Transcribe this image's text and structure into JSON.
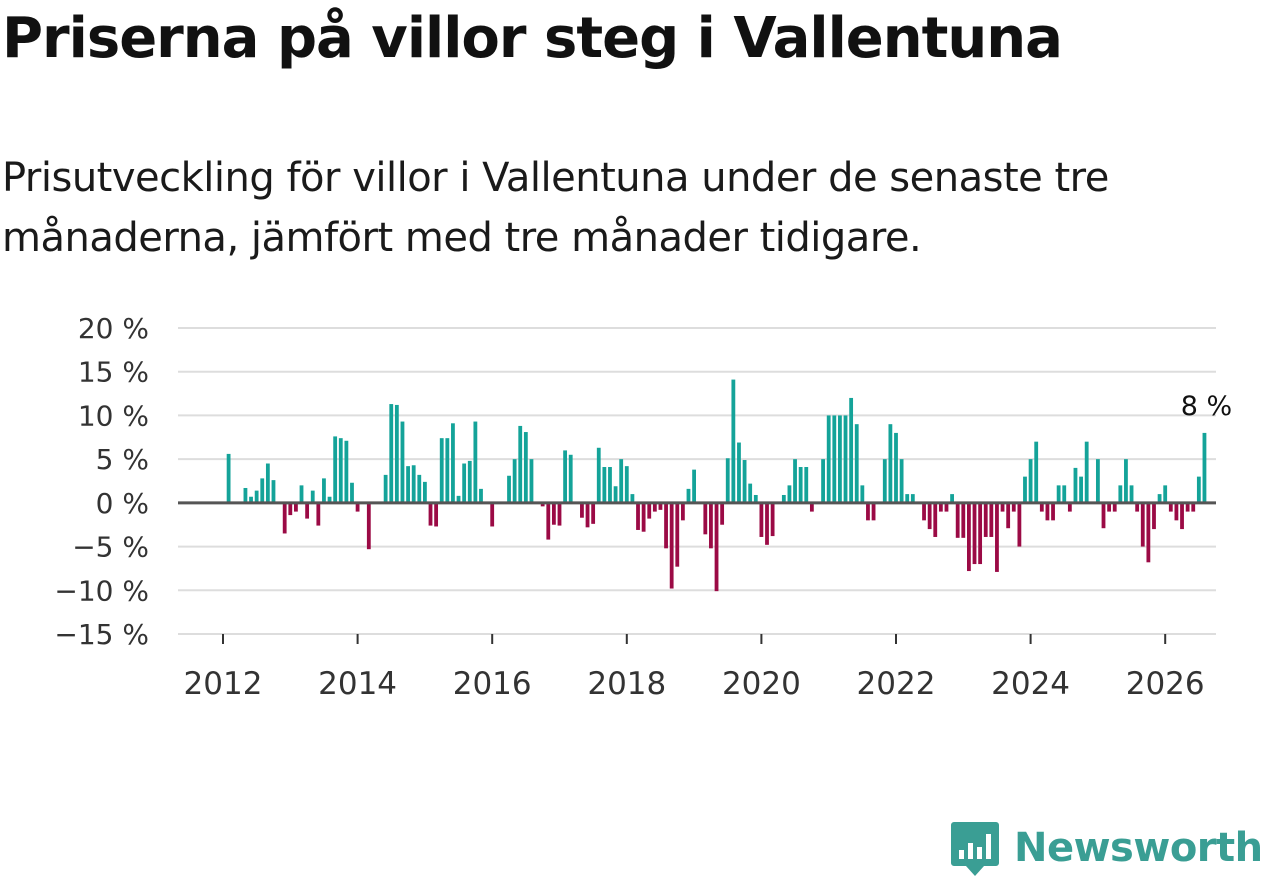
{
  "title": "Priserna på villor steg i Vallentuna",
  "subtitle": "Prisutveckling för villor i Vallentuna under de senaste tre månaderna, jämfört med tre månader tidigare.",
  "brand": {
    "name": "Newsworthy",
    "color": "#3a9e94"
  },
  "colors": {
    "positive": "#14a399",
    "negative": "#9b0a45",
    "grid": "#dddddd",
    "zero": "#555555"
  },
  "chart_data": {
    "type": "bar",
    "title": "Priserna på villor steg i Vallentuna",
    "xlabel": "",
    "ylabel": "",
    "ylim": [
      -15,
      20
    ],
    "yticks": [
      20,
      15,
      10,
      5,
      0,
      -5,
      -10,
      -15
    ],
    "ytick_labels": [
      "20 %",
      "15 %",
      "10 %",
      "5 %",
      "0 %",
      "−5 %",
      "−10 %",
      "−15 %"
    ],
    "xticks": [
      2012,
      2014,
      2016,
      2018,
      2020,
      2022,
      2024,
      2026
    ],
    "xtick_labels": [
      "2012",
      "2014",
      "2016",
      "2018",
      "2020",
      "2022",
      "2024",
      "2026"
    ],
    "x_start": "2012-01",
    "last_value_label": "8 %",
    "grid": true,
    "values": [
      0,
      5.6,
      0,
      0,
      1.7,
      0.7,
      1.4,
      2.8,
      4.5,
      2.6,
      0,
      -3.5,
      -1.4,
      -1.0,
      2.0,
      -1.8,
      1.4,
      -2.6,
      2.8,
      0.7,
      7.6,
      7.4,
      7.1,
      2.3,
      -1.0,
      0,
      -5.3,
      0,
      0,
      3.2,
      11.3,
      11.2,
      9.3,
      4.2,
      4.3,
      3.2,
      2.4,
      -2.6,
      -2.7,
      7.4,
      7.4,
      9.1,
      0.8,
      4.5,
      4.8,
      9.3,
      1.6,
      0,
      -2.7,
      0,
      0,
      3.1,
      5.0,
      8.8,
      8.1,
      5.0,
      0,
      -0.4,
      -4.2,
      -2.5,
      -2.6,
      6.0,
      5.5,
      0,
      -1.7,
      -2.8,
      -2.4,
      6.3,
      4.1,
      4.1,
      1.9,
      5.0,
      4.2,
      1.0,
      -3.1,
      -3.3,
      -1.8,
      -1.0,
      -0.8,
      -5.2,
      -9.8,
      -7.3,
      -2.0,
      1.6,
      3.8,
      0,
      -3.6,
      -5.2,
      -10.1,
      -2.5,
      5.1,
      14.1,
      6.9,
      4.9,
      2.2,
      0.9,
      -3.9,
      -4.8,
      -3.8,
      0,
      0.9,
      2.0,
      5.0,
      4.1,
      4.1,
      -1.0,
      0,
      5.0,
      10.0,
      10.0,
      10.0,
      10.0,
      12.0,
      9.0,
      2.0,
      -2.0,
      -2.0,
      0,
      5.0,
      9.0,
      8.0,
      5.0,
      1.0,
      1.0,
      0,
      -2.0,
      -3.0,
      -3.9,
      -1.0,
      -1.0,
      1.0,
      -4.0,
      -4.0,
      -7.8,
      -7.0,
      -7.0,
      -3.9,
      -3.9,
      -7.9,
      -1.0,
      -2.9,
      -1.0,
      -5.0,
      3.0,
      5.0,
      7.0,
      -1.0,
      -2.0,
      -2.0,
      2.0,
      2.0,
      -1.0,
      4.0,
      3.0,
      7.0,
      0,
      5.0,
      -2.9,
      -1.0,
      -1.0,
      2.0,
      5.0,
      2.0,
      -1.0,
      -5.0,
      -6.8,
      -3.0,
      1.0,
      2.0,
      -1.0,
      -2.0,
      -3.0,
      -1.0,
      -1.0,
      3.0,
      8.0
    ]
  }
}
